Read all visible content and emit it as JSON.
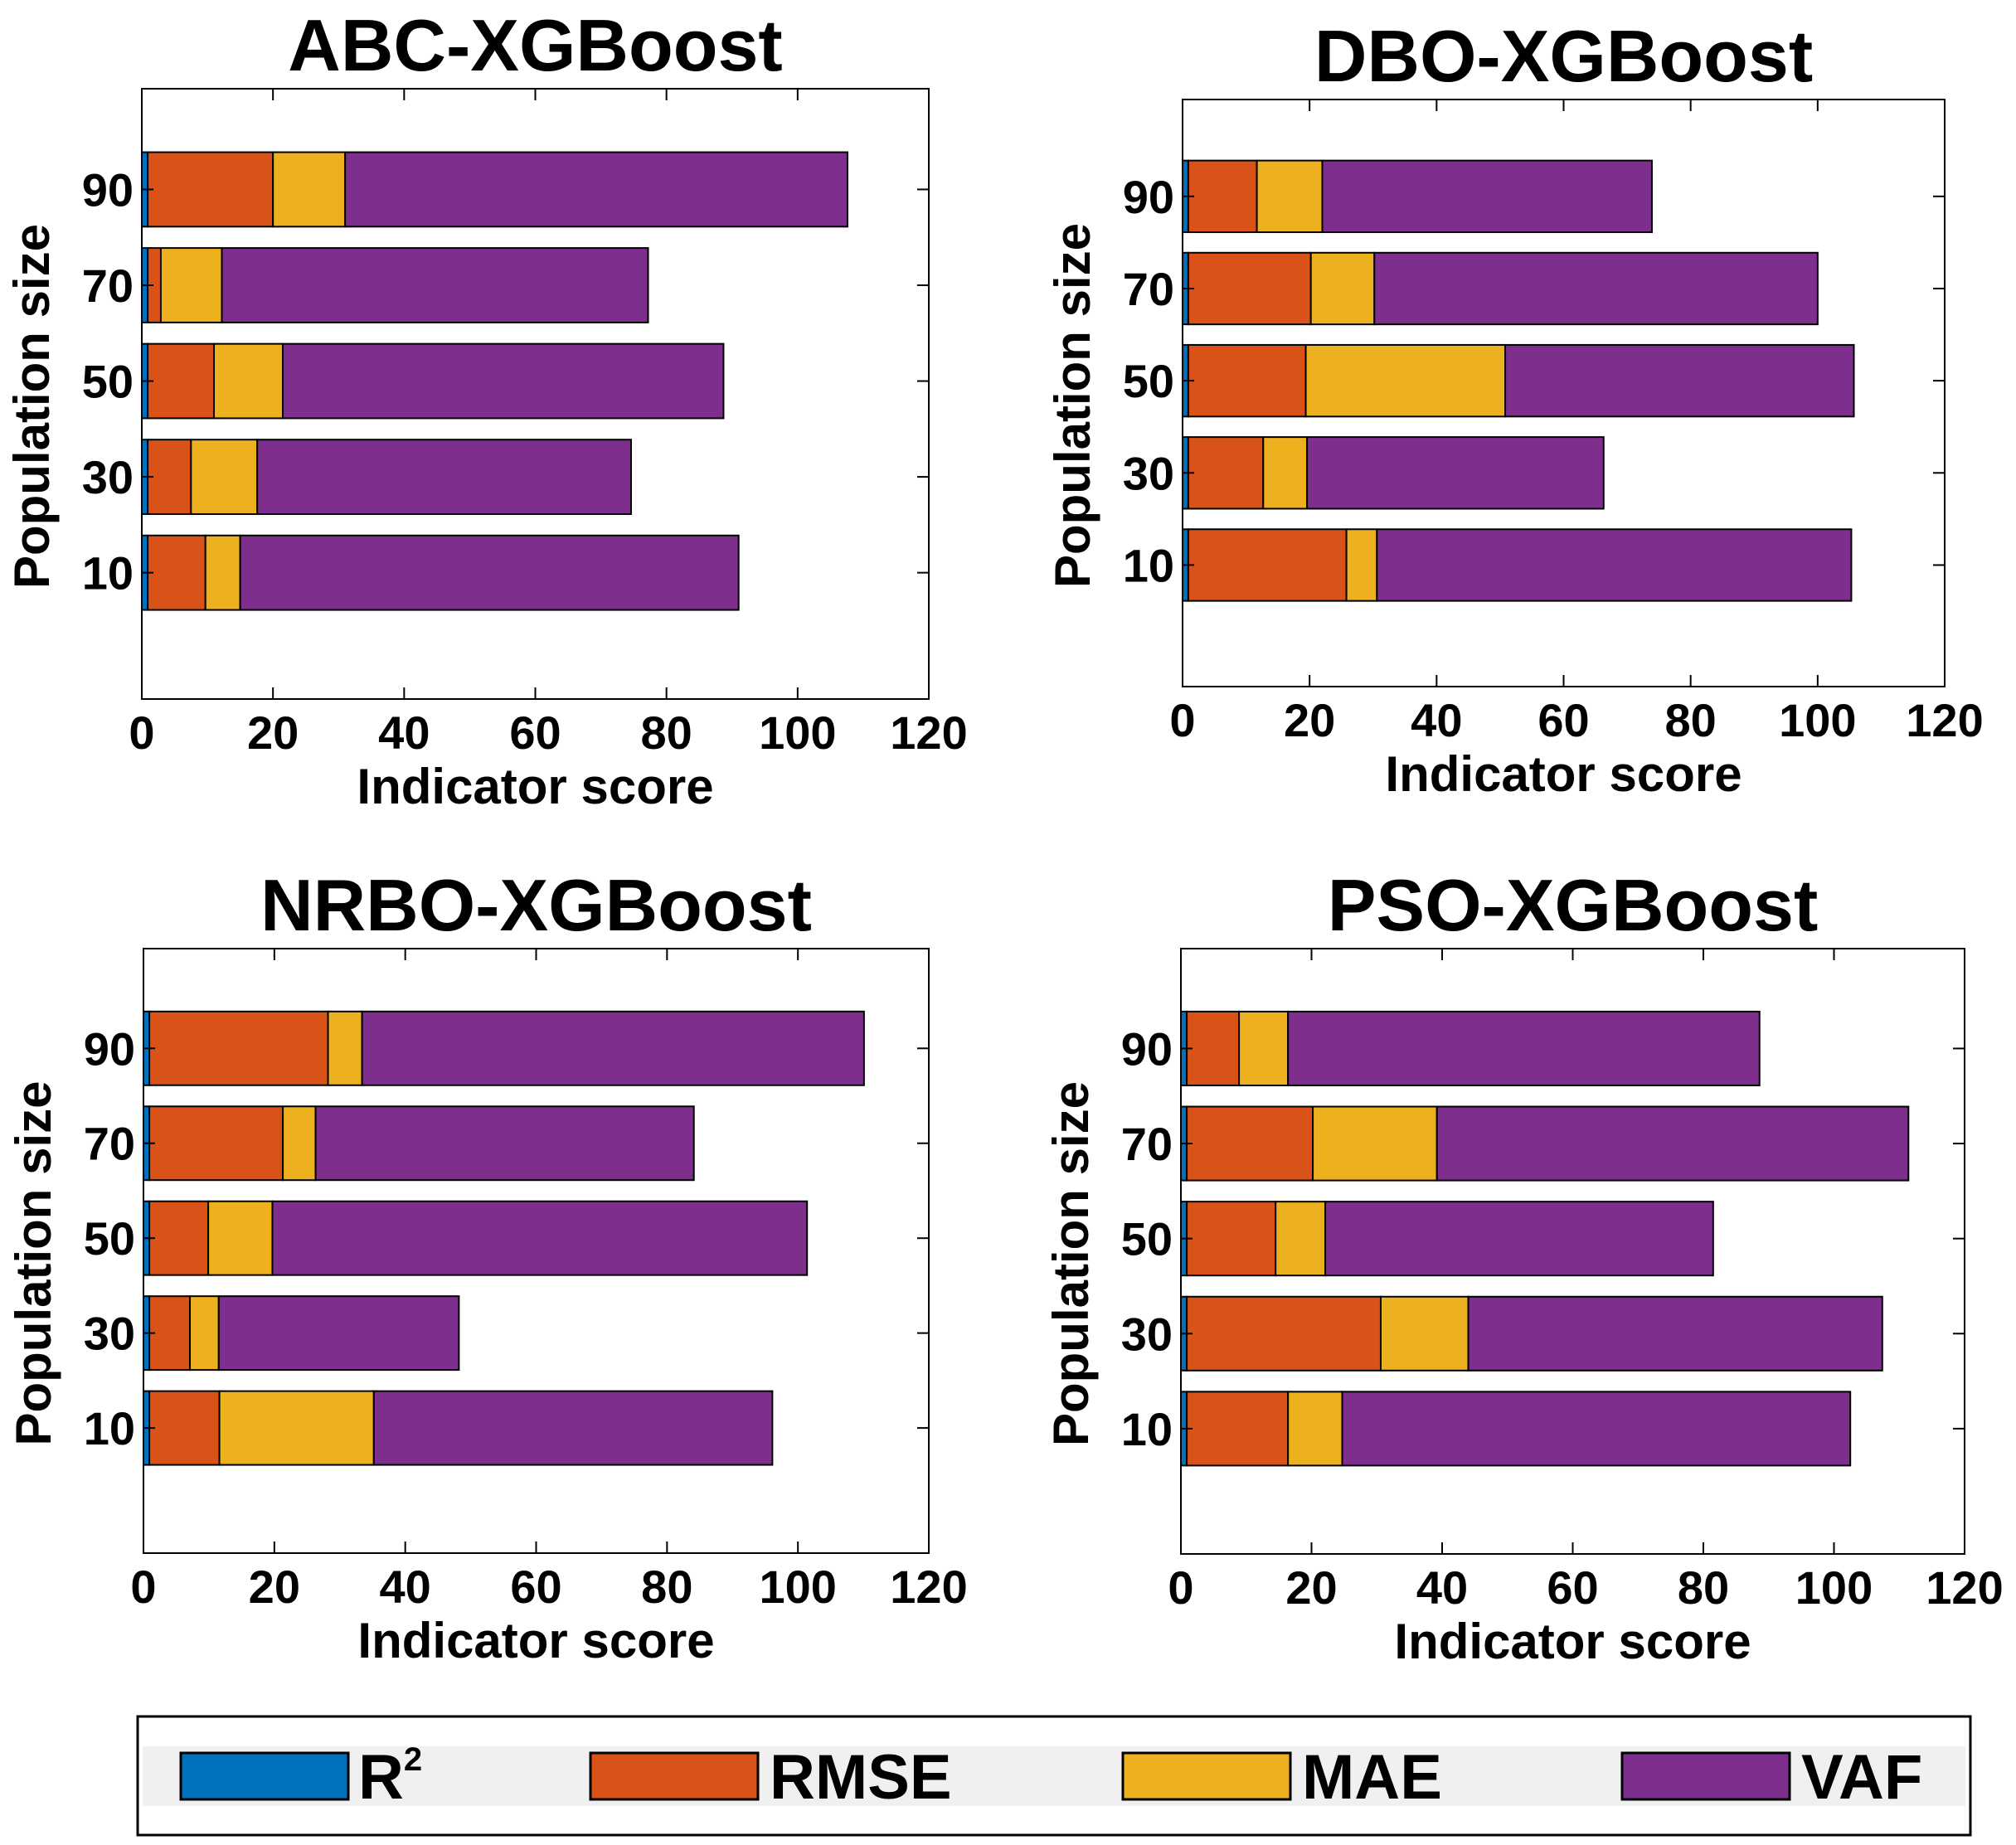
{
  "chart_data": [
    {
      "type": "bar",
      "orientation": "horizontal",
      "stacked": true,
      "title": "ABC-XGBoost",
      "xlabel": "Indicator score",
      "ylabel": "Population size",
      "categories": [
        "10",
        "30",
        "50",
        "70",
        "90"
      ],
      "xlim": [
        0,
        120
      ],
      "xticks": [
        0,
        20,
        40,
        60,
        80,
        100,
        120
      ],
      "series": [
        {
          "name": "R2",
          "values": [
            0.9,
            0.9,
            0.9,
            0.9,
            0.9
          ]
        },
        {
          "name": "RMSE",
          "values": [
            8.8,
            6.6,
            10.1,
            2.0,
            19.1
          ]
        },
        {
          "name": "MAE",
          "values": [
            5.3,
            10.1,
            10.5,
            9.3,
            11.0
          ]
        },
        {
          "name": "VAF",
          "values": [
            76.0,
            57.0,
            67.2,
            65.0,
            76.6
          ]
        }
      ]
    },
    {
      "type": "bar",
      "orientation": "horizontal",
      "stacked": true,
      "title": "DBO-XGBoost",
      "xlabel": "Indicator score",
      "ylabel": "Population size",
      "categories": [
        "10",
        "30",
        "50",
        "70",
        "90"
      ],
      "xlim": [
        0,
        120
      ],
      "xticks": [
        0,
        20,
        40,
        60,
        80,
        100,
        120
      ],
      "series": [
        {
          "name": "R2",
          "values": [
            0.9,
            0.9,
            0.9,
            0.9,
            0.9
          ]
        },
        {
          "name": "RMSE",
          "values": [
            24.9,
            11.8,
            18.5,
            19.3,
            10.8
          ]
        },
        {
          "name": "MAE",
          "values": [
            4.8,
            6.9,
            31.4,
            10.0,
            10.3
          ]
        },
        {
          "name": "VAF",
          "values": [
            74.7,
            46.7,
            54.9,
            69.8,
            51.9
          ]
        }
      ]
    },
    {
      "type": "bar",
      "orientation": "horizontal",
      "stacked": true,
      "title": "NRBO-XGBoost",
      "xlabel": "Indicator score",
      "ylabel": "Population size",
      "categories": [
        "10",
        "30",
        "50",
        "70",
        "90"
      ],
      "xlim": [
        0,
        120
      ],
      "xticks": [
        0,
        20,
        40,
        60,
        80,
        100,
        120
      ],
      "series": [
        {
          "name": "R2",
          "values": [
            0.9,
            0.9,
            0.9,
            0.9,
            0.9
          ]
        },
        {
          "name": "RMSE",
          "values": [
            10.7,
            6.2,
            9.0,
            20.4,
            27.3
          ]
        },
        {
          "name": "MAE",
          "values": [
            23.6,
            4.4,
            9.8,
            5.0,
            5.2
          ]
        },
        {
          "name": "VAF",
          "values": [
            60.9,
            36.7,
            81.7,
            57.8,
            76.7
          ]
        }
      ]
    },
    {
      "type": "bar",
      "orientation": "horizontal",
      "stacked": true,
      "title": "PSO-XGBoost",
      "xlabel": "Indicator score",
      "ylabel": "Population size",
      "categories": [
        "10",
        "30",
        "50",
        "70",
        "90"
      ],
      "xlim": [
        0,
        120
      ],
      "xticks": [
        0,
        20,
        40,
        60,
        80,
        100,
        120
      ],
      "series": [
        {
          "name": "R2",
          "values": [
            0.9,
            0.9,
            0.9,
            0.9,
            0.9
          ]
        },
        {
          "name": "RMSE",
          "values": [
            15.5,
            29.7,
            13.6,
            19.3,
            8.0
          ]
        },
        {
          "name": "MAE",
          "values": [
            8.3,
            13.4,
            7.6,
            19.0,
            7.5
          ]
        },
        {
          "name": "VAF",
          "values": [
            77.8,
            63.4,
            59.4,
            72.2,
            72.2
          ]
        }
      ]
    }
  ],
  "legend": [
    {
      "name": "R",
      "sup": "2",
      "color": "#0072BD"
    },
    {
      "name": "RMSE",
      "color": "#D95319"
    },
    {
      "name": "MAE",
      "color": "#EDB120"
    },
    {
      "name": "VAF",
      "color": "#7E2F8E"
    }
  ],
  "colors": {
    "R2": "#0072BD",
    "RMSE": "#D95319",
    "MAE": "#EDB120",
    "VAF": "#7E2F8E"
  }
}
